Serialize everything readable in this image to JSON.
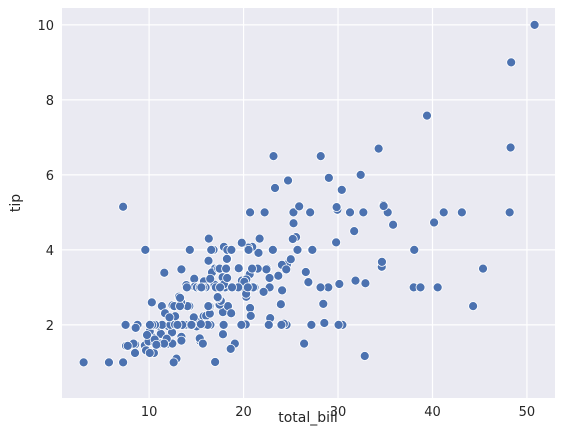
{
  "chart_data": {
    "type": "scatter",
    "x_label": "total_bill",
    "y_label": "tip",
    "color": "#4c72b0",
    "grid": true,
    "xlim": [
      0.78,
      52.97
    ],
    "ylim": [
      0.05,
      10.45
    ],
    "xticks": [
      10,
      20,
      30,
      40,
      50
    ],
    "yticks": [
      2,
      4,
      6,
      8,
      10
    ],
    "x": [
      16.99,
      10.34,
      21.01,
      23.68,
      24.59,
      25.29,
      8.77,
      26.88,
      15.04,
      14.78,
      10.27,
      35.26,
      15.42,
      18.43,
      14.83,
      21.58,
      10.33,
      16.29,
      16.97,
      20.65,
      17.92,
      20.29,
      15.77,
      39.42,
      19.82,
      17.81,
      13.37,
      12.69,
      21.7,
      19.65,
      9.55,
      18.35,
      15.06,
      20.69,
      17.78,
      24.06,
      16.31,
      16.93,
      18.69,
      31.27,
      16.04,
      17.46,
      13.94,
      9.68,
      30.4,
      18.29,
      22.23,
      32.4,
      28.55,
      18.04,
      12.54,
      10.29,
      34.81,
      9.94,
      25.56,
      19.49,
      38.01,
      26.41,
      11.24,
      48.27,
      20.29,
      13.81,
      11.02,
      18.29,
      17.59,
      20.08,
      16.45,
      3.07,
      20.23,
      15.01,
      12.02,
      17.07,
      26.86,
      25.28,
      14.73,
      10.51,
      17.92,
      27.2,
      22.76,
      17.29,
      19.44,
      16.66,
      10.07,
      32.68,
      15.98,
      34.83,
      13.03,
      18.28,
      24.71,
      21.16,
      28.97,
      22.49,
      5.75,
      16.32,
      22.75,
      40.17,
      27.28,
      12.03,
      21.01,
      12.46,
      11.35,
      15.38,
      44.3,
      22.42,
      20.92,
      15.36,
      20.49,
      25.21,
      18.24,
      14.31,
      14.0,
      7.25,
      38.07,
      23.95,
      25.71,
      17.31,
      29.93,
      10.65,
      12.43,
      24.08,
      11.69,
      13.42,
      14.26,
      15.95,
      12.48,
      29.8,
      8.52,
      14.52,
      11.38,
      22.82,
      19.08,
      20.27,
      11.17,
      12.26,
      18.26,
      8.51,
      10.33,
      14.15,
      16.0,
      13.16,
      17.47,
      34.3,
      41.19,
      27.05,
      16.43,
      8.35,
      18.64,
      11.87,
      9.78,
      7.51,
      14.07,
      13.13,
      17.26,
      24.55,
      19.77,
      29.85,
      48.17,
      25.0,
      13.39,
      16.49,
      21.5,
      12.66,
      16.21,
      13.81,
      17.51,
      24.52,
      20.76,
      31.71,
      10.59,
      10.63,
      50.81,
      15.81,
      7.25,
      31.85,
      16.82,
      32.9,
      17.89,
      14.48,
      9.6,
      34.63,
      34.65,
      23.33,
      45.35,
      23.17,
      40.55,
      20.69,
      20.9,
      30.46,
      18.15,
      23.1,
      15.69,
      19.81,
      28.44,
      15.48,
      16.58,
      7.56,
      10.34,
      43.11,
      13.0,
      13.51,
      18.71,
      12.74,
      13.0,
      16.4,
      20.53,
      16.47,
      26.59,
      38.73,
      24.27,
      12.76,
      30.06,
      25.89,
      48.33,
      13.27,
      28.17,
      12.9,
      28.15,
      11.59,
      7.74,
      30.14,
      12.16,
      13.42,
      8.58,
      15.98,
      13.42,
      16.27,
      10.09,
      20.45,
      13.28,
      22.12,
      24.01,
      15.69,
      11.61,
      10.77,
      15.53,
      10.07,
      12.6,
      32.83,
      35.83,
      29.03,
      27.18,
      22.67,
      17.82,
      18.78
    ],
    "y": [
      1.01,
      1.66,
      3.5,
      3.31,
      3.61,
      4.71,
      2.0,
      3.12,
      1.96,
      3.23,
      1.71,
      5.0,
      1.57,
      3.0,
      3.02,
      3.92,
      1.67,
      3.71,
      3.5,
      3.35,
      4.08,
      2.75,
      2.23,
      7.58,
      3.18,
      2.34,
      2.0,
      2.0,
      4.3,
      3.0,
      1.45,
      2.5,
      3.0,
      2.45,
      3.27,
      3.6,
      2.0,
      3.07,
      2.31,
      5.0,
      2.24,
      2.54,
      3.06,
      1.32,
      5.6,
      3.0,
      5.0,
      6.0,
      2.05,
      3.0,
      2.5,
      2.6,
      5.2,
      1.56,
      4.34,
      3.51,
      3.0,
      1.5,
      1.76,
      6.73,
      3.21,
      2.0,
      1.98,
      3.76,
      2.64,
      3.15,
      2.47,
      1.0,
      2.01,
      2.09,
      1.97,
      3.0,
      3.14,
      5.0,
      2.2,
      1.25,
      3.08,
      4.0,
      3.0,
      2.71,
      3.0,
      3.4,
      1.83,
      5.0,
      2.03,
      5.17,
      2.0,
      4.0,
      5.85,
      3.0,
      3.0,
      3.5,
      1.0,
      4.3,
      3.25,
      4.73,
      4.0,
      1.5,
      3.0,
      1.5,
      2.5,
      3.0,
      2.5,
      3.48,
      4.08,
      1.64,
      4.06,
      4.29,
      3.76,
      4.0,
      3.0,
      1.0,
      4.0,
      2.55,
      4.0,
      3.5,
      5.07,
      1.5,
      1.8,
      2.92,
      2.31,
      1.68,
      2.5,
      2.0,
      2.52,
      4.2,
      1.48,
      2.0,
      2.0,
      2.18,
      1.5,
      2.83,
      1.5,
      2.0,
      3.25,
      1.25,
      2.0,
      2.0,
      2.0,
      2.75,
      3.5,
      6.7,
      5.0,
      5.0,
      2.3,
      1.5,
      1.36,
      1.63,
      1.73,
      2.0,
      2.5,
      2.0,
      2.74,
      2.0,
      2.0,
      5.14,
      5.0,
      3.75,
      2.61,
      2.0,
      3.5,
      2.5,
      2.0,
      2.0,
      3.0,
      3.48,
      2.24,
      4.5,
      1.61,
      2.0,
      10.0,
      3.16,
      5.15,
      3.18,
      4.0,
      3.11,
      2.0,
      2.0,
      4.0,
      3.55,
      3.68,
      5.65,
      3.5,
      6.5,
      3.0,
      5.0,
      3.5,
      2.0,
      3.5,
      4.0,
      1.5,
      4.19,
      2.56,
      2.02,
      4.0,
      1.44,
      2.0,
      5.0,
      2.0,
      2.0,
      4.0,
      2.01,
      2.0,
      2.5,
      4.0,
      3.23,
      3.41,
      3.0,
      2.03,
      2.23,
      2.0,
      5.16,
      9.0,
      2.5,
      6.5,
      1.1,
      3.0,
      1.5,
      1.44,
      3.09,
      2.2,
      3.48,
      1.92,
      3.0,
      1.58,
      2.5,
      2.0,
      3.0,
      2.72,
      2.88,
      2.0,
      3.0,
      3.39,
      1.47,
      3.0,
      1.25,
      1.0,
      1.17,
      4.67,
      5.92,
      2.0,
      2.0,
      1.75,
      3.0
    ]
  }
}
